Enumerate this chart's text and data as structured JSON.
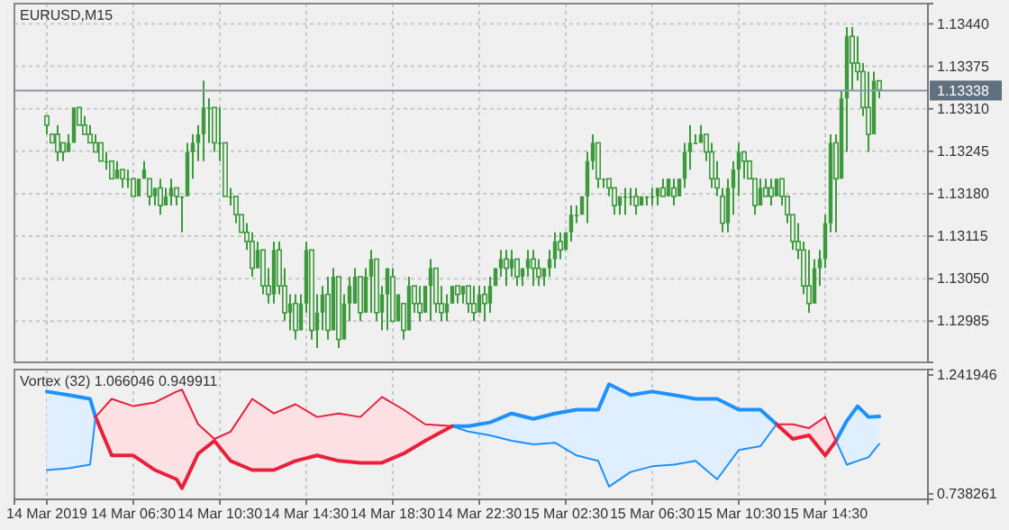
{
  "chart_data": [
    {
      "type": "candlestick",
      "title": "EURUSD,M15",
      "color": "#3c9a3c",
      "grid": true,
      "tick_labels": "y",
      "xlim": [
        "2019-03-14T01:00",
        "2019-03-15T19:15"
      ],
      "xticks": [
        {
          "value": "2019-03-14T02:30",
          "label": null
        },
        {
          "value": "2019-03-14T06:30",
          "label": null
        },
        {
          "value": "2019-03-14T10:30",
          "label": null
        },
        {
          "value": "2019-03-14T14:30",
          "label": null
        },
        {
          "value": "2019-03-14T18:30",
          "label": null
        },
        {
          "value": "2019-03-14T22:30",
          "label": null
        },
        {
          "value": "2019-03-15T02:30",
          "label": null
        },
        {
          "value": "2019-03-15T06:30",
          "label": null
        },
        {
          "value": "2019-03-15T10:30",
          "label": null
        },
        {
          "value": "2019-03-15T14:30",
          "label": null
        }
      ],
      "ylim": [
        1.12922,
        1.13471
      ],
      "yticks": [
        {
          "value": 1.12985,
          "label": "1.12985"
        },
        {
          "value": 1.1305,
          "label": "1.13050"
        },
        {
          "value": 1.13115,
          "label": "1.13115"
        },
        {
          "value": 1.1318,
          "label": "1.13180"
        },
        {
          "value": 1.13245,
          "label": "1.13245"
        },
        {
          "value": 1.1331,
          "label": "1.13310"
        },
        {
          "value": 1.13375,
          "label": "1.13375"
        },
        {
          "value": 1.1344,
          "label": "1.13440"
        }
      ],
      "ref_lines": [
        {
          "axis": "y",
          "value": 1.13338,
          "label": "1.13338",
          "color": "#8a98a8"
        }
      ],
      "x": [
        "2019-03-14T02:30",
        "2019-03-14T02:45",
        "2019-03-14T03:00",
        "2019-03-14T03:15",
        "2019-03-14T03:30",
        "2019-03-14T03:45",
        "2019-03-14T04:00",
        "2019-03-14T04:15",
        "2019-03-14T04:30",
        "2019-03-14T04:45",
        "2019-03-14T05:00",
        "2019-03-14T05:15",
        "2019-03-14T05:30",
        "2019-03-14T05:45",
        "2019-03-14T06:00",
        "2019-03-14T06:15",
        "2019-03-14T06:30",
        "2019-03-14T06:45",
        "2019-03-14T07:00",
        "2019-03-14T07:15",
        "2019-03-14T07:30",
        "2019-03-14T07:45",
        "2019-03-14T08:00",
        "2019-03-14T08:15",
        "2019-03-14T08:30",
        "2019-03-14T08:45",
        "2019-03-14T09:00",
        "2019-03-14T09:15",
        "2019-03-14T09:30",
        "2019-03-14T09:45",
        "2019-03-14T10:00",
        "2019-03-14T10:15",
        "2019-03-14T10:30",
        "2019-03-14T10:45",
        "2019-03-14T11:00",
        "2019-03-14T11:15",
        "2019-03-14T11:30",
        "2019-03-14T11:45",
        "2019-03-14T12:00",
        "2019-03-14T12:15",
        "2019-03-14T12:30",
        "2019-03-14T12:45",
        "2019-03-14T13:00",
        "2019-03-14T13:15",
        "2019-03-14T13:30",
        "2019-03-14T13:45",
        "2019-03-14T14:00",
        "2019-03-14T14:15",
        "2019-03-14T14:30",
        "2019-03-14T14:45",
        "2019-03-14T15:00",
        "2019-03-14T15:15",
        "2019-03-14T15:30",
        "2019-03-14T15:45",
        "2019-03-14T16:00",
        "2019-03-14T16:15",
        "2019-03-14T16:30",
        "2019-03-14T16:45",
        "2019-03-14T17:00",
        "2019-03-14T17:15",
        "2019-03-14T17:30",
        "2019-03-14T17:45",
        "2019-03-14T18:00",
        "2019-03-14T18:15",
        "2019-03-14T18:30",
        "2019-03-14T18:45",
        "2019-03-14T19:00",
        "2019-03-14T19:15",
        "2019-03-14T19:30",
        "2019-03-14T19:45",
        "2019-03-14T20:00",
        "2019-03-14T20:15",
        "2019-03-14T20:30",
        "2019-03-14T20:45",
        "2019-03-14T21:00",
        "2019-03-14T21:15",
        "2019-03-14T21:30",
        "2019-03-14T21:45",
        "2019-03-14T22:00",
        "2019-03-14T22:15",
        "2019-03-14T22:30",
        "2019-03-14T22:45",
        "2019-03-14T23:00",
        "2019-03-14T23:15",
        "2019-03-14T23:30",
        "2019-03-14T23:45",
        "2019-03-15T00:00",
        "2019-03-15T00:15",
        "2019-03-15T00:30",
        "2019-03-15T00:45",
        "2019-03-15T01:00",
        "2019-03-15T01:15",
        "2019-03-15T01:30",
        "2019-03-15T01:45",
        "2019-03-15T02:00",
        "2019-03-15T02:15",
        "2019-03-15T02:30",
        "2019-03-15T02:45",
        "2019-03-15T03:00",
        "2019-03-15T03:15",
        "2019-03-15T03:30",
        "2019-03-15T03:45",
        "2019-03-15T04:00",
        "2019-03-15T04:15",
        "2019-03-15T04:30",
        "2019-03-15T04:45",
        "2019-03-15T05:00",
        "2019-03-15T05:15",
        "2019-03-15T05:30",
        "2019-03-15T05:45",
        "2019-03-15T06:00",
        "2019-03-15T06:15",
        "2019-03-15T06:30",
        "2019-03-15T06:45",
        "2019-03-15T07:00",
        "2019-03-15T07:15",
        "2019-03-15T07:30",
        "2019-03-15T07:45",
        "2019-03-15T08:00",
        "2019-03-15T08:15",
        "2019-03-15T08:30",
        "2019-03-15T08:45",
        "2019-03-15T09:00",
        "2019-03-15T09:15",
        "2019-03-15T09:30",
        "2019-03-15T09:45",
        "2019-03-15T10:00",
        "2019-03-15T10:15",
        "2019-03-15T10:30",
        "2019-03-15T10:45",
        "2019-03-15T11:00",
        "2019-03-15T11:15",
        "2019-03-15T11:30",
        "2019-03-15T11:45",
        "2019-03-15T12:00",
        "2019-03-15T12:15",
        "2019-03-15T12:30",
        "2019-03-15T12:45",
        "2019-03-15T13:00",
        "2019-03-15T13:15",
        "2019-03-15T13:30",
        "2019-03-15T13:45",
        "2019-03-15T14:00",
        "2019-03-15T14:15",
        "2019-03-15T14:30",
        "2019-03-15T14:45",
        "2019-03-15T15:00",
        "2019-03-15T15:15",
        "2019-03-15T15:30",
        "2019-03-15T15:45",
        "2019-03-15T16:00",
        "2019-03-15T16:15",
        "2019-03-15T16:30",
        "2019-03-15T16:45",
        "2019-03-15T17:00"
      ],
      "ohlc": [
        [
          1.13299,
          1.13299,
          1.13271,
          1.13285
        ],
        [
          1.13271,
          1.13271,
          1.13258,
          1.13258
        ],
        [
          1.13271,
          1.13285,
          1.1323,
          1.13244
        ],
        [
          1.13258,
          1.13258,
          1.1323,
          1.13244
        ],
        [
          1.13244,
          1.13271,
          1.13244,
          1.13258
        ],
        [
          1.13258,
          1.13312,
          1.13258,
          1.13312
        ],
        [
          1.13312,
          1.13312,
          1.13285,
          1.13285
        ],
        [
          1.13285,
          1.13299,
          1.13271,
          1.13271
        ],
        [
          1.13271,
          1.13285,
          1.13258,
          1.13258
        ],
        [
          1.13258,
          1.13271,
          1.13244,
          1.13244
        ],
        [
          1.13258,
          1.13258,
          1.1323,
          1.1323
        ],
        [
          1.1323,
          1.13244,
          1.13217,
          1.1323
        ],
        [
          1.1323,
          1.1323,
          1.13203,
          1.13203
        ],
        [
          1.13203,
          1.1323,
          1.13203,
          1.13217
        ],
        [
          1.13217,
          1.13217,
          1.13189,
          1.13203
        ],
        [
          1.13203,
          1.13217,
          1.13189,
          1.13203
        ],
        [
          1.13203,
          1.13203,
          1.13176,
          1.13176
        ],
        [
          1.13176,
          1.13203,
          1.13176,
          1.13203
        ],
        [
          1.13203,
          1.1323,
          1.13203,
          1.13217
        ],
        [
          1.13203,
          1.13203,
          1.13162,
          1.13176
        ],
        [
          1.13176,
          1.13189,
          1.13162,
          1.13189
        ],
        [
          1.13189,
          1.13203,
          1.13148,
          1.13162
        ],
        [
          1.13162,
          1.13189,
          1.13162,
          1.13176
        ],
        [
          1.13176,
          1.13203,
          1.13162,
          1.13189
        ],
        [
          1.13189,
          1.13189,
          1.13162,
          1.13176
        ],
        [
          1.13176,
          1.13176,
          1.13121,
          1.13176
        ],
        [
          1.13176,
          1.13258,
          1.13176,
          1.13244
        ],
        [
          1.13244,
          1.13271,
          1.13203,
          1.13258
        ],
        [
          1.13258,
          1.13285,
          1.1323,
          1.13271
        ],
        [
          1.13271,
          1.13353,
          1.1323,
          1.13312
        ],
        [
          1.13312,
          1.13326,
          1.13258,
          1.13312
        ],
        [
          1.13312,
          1.13312,
          1.13244,
          1.13258
        ],
        [
          1.13258,
          1.13312,
          1.1323,
          1.13258
        ],
        [
          1.13258,
          1.13258,
          1.13176,
          1.13176
        ],
        [
          1.13176,
          1.13189,
          1.13162,
          1.13176
        ],
        [
          1.13176,
          1.13176,
          1.13135,
          1.13148
        ],
        [
          1.13148,
          1.13148,
          1.13121,
          1.13121
        ],
        [
          1.13121,
          1.13135,
          1.13094,
          1.13107
        ],
        [
          1.13107,
          1.13121,
          1.13053,
          1.13066
        ],
        [
          1.13066,
          1.13107,
          1.13066,
          1.13094
        ],
        [
          1.13094,
          1.13094,
          1.13026,
          1.13039
        ],
        [
          1.13039,
          1.13066,
          1.13012,
          1.13026
        ],
        [
          1.13026,
          1.13107,
          1.13012,
          1.13094
        ],
        [
          1.13094,
          1.13107,
          1.13026,
          1.13039
        ],
        [
          1.13039,
          1.13066,
          1.12985,
          1.12998
        ],
        [
          1.12998,
          1.13026,
          1.12971,
          1.13012
        ],
        [
          1.13012,
          1.13026,
          1.12957,
          1.12971
        ],
        [
          1.12971,
          1.13026,
          1.12971,
          1.13012
        ],
        [
          1.13012,
          1.13107,
          1.12998,
          1.13094
        ],
        [
          1.13094,
          1.13094,
          1.12957,
          1.12971
        ],
        [
          1.12971,
          1.13026,
          1.12944,
          1.12998
        ],
        [
          1.12998,
          1.13039,
          1.12971,
          1.13026
        ],
        [
          1.13026,
          1.13053,
          1.12957,
          1.12971
        ],
        [
          1.12971,
          1.13066,
          1.12971,
          1.13053
        ],
        [
          1.13053,
          1.13053,
          1.12944,
          1.12957
        ],
        [
          1.12957,
          1.13026,
          1.12957,
          1.13012
        ],
        [
          1.13012,
          1.13053,
          1.12985,
          1.13039
        ],
        [
          1.13012,
          1.13066,
          1.13012,
          1.13053
        ],
        [
          1.13053,
          1.13053,
          1.12985,
          1.12998
        ],
        [
          1.12998,
          1.13066,
          1.12998,
          1.13053
        ],
        [
          1.13053,
          1.13094,
          1.12998,
          1.1308
        ],
        [
          1.1308,
          1.1308,
          1.12985,
          1.12998
        ],
        [
          1.12998,
          1.13039,
          1.12971,
          1.13026
        ],
        [
          1.13026,
          1.13066,
          1.12971,
          1.13066
        ],
        [
          1.13053,
          1.13066,
          1.12985,
          1.12985
        ],
        [
          1.12985,
          1.13026,
          1.12985,
          1.13026
        ],
        [
          1.13012,
          1.13012,
          1.12957,
          1.12971
        ],
        [
          1.12971,
          1.13053,
          1.12971,
          1.13039
        ],
        [
          1.13039,
          1.13039,
          1.12998,
          1.13012
        ],
        [
          1.13012,
          1.13039,
          1.12985,
          1.12998
        ],
        [
          1.12998,
          1.13039,
          1.12998,
          1.13039
        ],
        [
          1.13039,
          1.1308,
          1.12985,
          1.13066
        ],
        [
          1.13066,
          1.13066,
          1.12998,
          1.13012
        ],
        [
          1.13012,
          1.13039,
          1.12985,
          1.12998
        ],
        [
          1.12998,
          1.13026,
          1.12985,
          1.13012
        ],
        [
          1.13012,
          1.13039,
          1.13012,
          1.13039
        ],
        [
          1.13039,
          1.13039,
          1.13012,
          1.13026
        ],
        [
          1.13026,
          1.13039,
          1.13012,
          1.13039
        ],
        [
          1.13039,
          1.13039,
          1.12998,
          1.13012
        ],
        [
          1.13012,
          1.13039,
          1.12985,
          1.12998
        ],
        [
          1.12998,
          1.13039,
          1.12998,
          1.13026
        ],
        [
          1.13026,
          1.13039,
          1.12985,
          1.13012
        ],
        [
          1.13012,
          1.13053,
          1.12998,
          1.13039
        ],
        [
          1.13039,
          1.13066,
          1.13039,
          1.13066
        ],
        [
          1.13066,
          1.13094,
          1.13053,
          1.1308
        ],
        [
          1.1308,
          1.13094,
          1.13039,
          1.13066
        ],
        [
          1.13066,
          1.13094,
          1.13053,
          1.1308
        ],
        [
          1.1308,
          1.1308,
          1.13039,
          1.13053
        ],
        [
          1.13053,
          1.13066,
          1.13039,
          1.13066
        ],
        [
          1.13066,
          1.13094,
          1.13053,
          1.1308
        ],
        [
          1.1308,
          1.13094,
          1.13039,
          1.13066
        ],
        [
          1.13066,
          1.1308,
          1.13039,
          1.13053
        ],
        [
          1.13053,
          1.13066,
          1.13039,
          1.13066
        ],
        [
          1.13066,
          1.13094,
          1.13053,
          1.1308
        ],
        [
          1.1308,
          1.13121,
          1.13066,
          1.13107
        ],
        [
          1.13107,
          1.13121,
          1.1308,
          1.13094
        ],
        [
          1.13094,
          1.13121,
          1.13094,
          1.13121
        ],
        [
          1.13121,
          1.13162,
          1.13107,
          1.13148
        ],
        [
          1.13148,
          1.13162,
          1.13135,
          1.13148
        ],
        [
          1.13148,
          1.13176,
          1.13148,
          1.13176
        ],
        [
          1.13176,
          1.13244,
          1.13135,
          1.1323
        ],
        [
          1.1323,
          1.13271,
          1.13217,
          1.13258
        ],
        [
          1.13258,
          1.13258,
          1.13189,
          1.13203
        ],
        [
          1.13203,
          1.13203,
          1.13189,
          1.13203
        ],
        [
          1.13203,
          1.13203,
          1.13176,
          1.13189
        ],
        [
          1.13189,
          1.13189,
          1.13148,
          1.13162
        ],
        [
          1.13162,
          1.13176,
          1.13148,
          1.13176
        ],
        [
          1.13176,
          1.13189,
          1.13148,
          1.13176
        ],
        [
          1.13176,
          1.13189,
          1.13162,
          1.13176
        ],
        [
          1.13176,
          1.13189,
          1.13148,
          1.13162
        ],
        [
          1.13162,
          1.13176,
          1.13162,
          1.13176
        ],
        [
          1.13176,
          1.13176,
          1.13162,
          1.13176
        ],
        [
          1.13176,
          1.13189,
          1.13162,
          1.13176
        ],
        [
          1.13176,
          1.13189,
          1.13162,
          1.13189
        ],
        [
          1.13189,
          1.13203,
          1.13176,
          1.13176
        ],
        [
          1.13176,
          1.13203,
          1.13176,
          1.13203
        ],
        [
          1.13189,
          1.13203,
          1.13162,
          1.13176
        ],
        [
          1.13176,
          1.13203,
          1.13176,
          1.13203
        ],
        [
          1.13203,
          1.13258,
          1.13189,
          1.13244
        ],
        [
          1.13244,
          1.13285,
          1.13217,
          1.13258
        ],
        [
          1.13258,
          1.13271,
          1.13258,
          1.13258
        ],
        [
          1.13258,
          1.13285,
          1.13258,
          1.13271
        ],
        [
          1.13271,
          1.13271,
          1.1323,
          1.13244
        ],
        [
          1.13244,
          1.13258,
          1.13189,
          1.13203
        ],
        [
          1.13203,
          1.1323,
          1.13176,
          1.13189
        ],
        [
          1.13176,
          1.13189,
          1.13121,
          1.13135
        ],
        [
          1.13135,
          1.13203,
          1.13121,
          1.13189
        ],
        [
          1.13189,
          1.1323,
          1.13148,
          1.13217
        ],
        [
          1.13217,
          1.13258,
          1.13176,
          1.13244
        ],
        [
          1.13244,
          1.13244,
          1.13203,
          1.1323
        ],
        [
          1.1323,
          1.1323,
          1.13203,
          1.13203
        ],
        [
          1.13203,
          1.13203,
          1.13148,
          1.13162
        ],
        [
          1.13162,
          1.13203,
          1.13162,
          1.13189
        ],
        [
          1.13189,
          1.13203,
          1.13176,
          1.13176
        ],
        [
          1.13189,
          1.13203,
          1.13162,
          1.13176
        ],
        [
          1.13176,
          1.13203,
          1.13176,
          1.13203
        ],
        [
          1.13203,
          1.13203,
          1.13162,
          1.13176
        ],
        [
          1.13176,
          1.13176,
          1.13135,
          1.13148
        ],
        [
          1.13148,
          1.13148,
          1.13094,
          1.13107
        ],
        [
          1.13107,
          1.13135,
          1.1308,
          1.13094
        ],
        [
          1.13094,
          1.13107,
          1.13026,
          1.13039
        ],
        [
          1.13039,
          1.13094,
          1.12998,
          1.13012
        ],
        [
          1.13012,
          1.1308,
          1.13012,
          1.13066
        ],
        [
          1.13066,
          1.13094,
          1.13039,
          1.1308
        ],
        [
          1.1308,
          1.13148,
          1.13066,
          1.13135
        ],
        [
          1.13135,
          1.13271,
          1.13121,
          1.13258
        ],
        [
          1.13258,
          1.13271,
          1.13121,
          1.13203
        ],
        [
          1.13203,
          1.13339,
          1.13203,
          1.13326
        ],
        [
          1.13326,
          1.13435,
          1.13244,
          1.13421
        ],
        [
          1.13421,
          1.13435,
          1.13339,
          1.1338
        ],
        [
          1.1338,
          1.13421,
          1.13353,
          1.13367
        ],
        [
          1.13367,
          1.1338,
          1.13299,
          1.13312
        ],
        [
          1.13312,
          1.13367,
          1.13244,
          1.13271
        ],
        [
          1.13271,
          1.13367,
          1.13271,
          1.13353
        ],
        [
          1.13353,
          1.13353,
          1.13326,
          1.13339
        ]
      ]
    },
    {
      "type": "line",
      "title": "Vortex (32) 1.066046 0.949911",
      "grid": "x",
      "xlim": [
        "2019-03-14T01:00",
        "2019-03-15T19:15"
      ],
      "xticks": [
        {
          "value": "2019-03-14T02:30",
          "label": "14 Mar 2019"
        },
        {
          "value": "2019-03-14T06:30",
          "label": "14 Mar 06:30"
        },
        {
          "value": "2019-03-14T10:30",
          "label": "14 Mar 10:30"
        },
        {
          "value": "2019-03-14T14:30",
          "label": "14 Mar 14:30"
        },
        {
          "value": "2019-03-14T18:30",
          "label": "14 Mar 18:30"
        },
        {
          "value": "2019-03-14T22:30",
          "label": "14 Mar 22:30"
        },
        {
          "value": "2019-03-15T02:30",
          "label": "15 Mar 02:30"
        },
        {
          "value": "2019-03-15T06:30",
          "label": "15 Mar 06:30"
        },
        {
          "value": "2019-03-15T10:30",
          "label": "15 Mar 10:30"
        },
        {
          "value": "2019-03-15T14:30",
          "label": "15 Mar 14:30"
        }
      ],
      "ylim": [
        0.715,
        1.265
      ],
      "yticks": [
        0.738261,
        1.241946
      ],
      "x": [
        "2019-03-14T02:30",
        "2019-03-14T03:30",
        "2019-03-14T04:30",
        "2019-03-14T04:45",
        "2019-03-14T05:30",
        "2019-03-14T06:30",
        "2019-03-14T07:30",
        "2019-03-14T08:30",
        "2019-03-14T08:45",
        "2019-03-14T09:30",
        "2019-03-14T10:15",
        "2019-03-14T11:00",
        "2019-03-14T12:00",
        "2019-03-14T13:00",
        "2019-03-14T14:00",
        "2019-03-14T15:00",
        "2019-03-14T16:00",
        "2019-03-14T17:00",
        "2019-03-14T18:00",
        "2019-03-14T19:00",
        "2019-03-14T20:00",
        "2019-03-14T21:15",
        "2019-03-14T22:00",
        "2019-03-14T23:00",
        "2019-03-15T00:00",
        "2019-03-15T01:00",
        "2019-03-15T02:00",
        "2019-03-15T03:00",
        "2019-03-15T04:00",
        "2019-03-15T04:30",
        "2019-03-15T05:30",
        "2019-03-15T06:30",
        "2019-03-15T07:30",
        "2019-03-15T08:30",
        "2019-03-15T09:30",
        "2019-03-15T10:30",
        "2019-03-15T11:30",
        "2019-03-15T12:15",
        "2019-03-15T13:00",
        "2019-03-15T13:45",
        "2019-03-15T14:30",
        "2019-03-15T15:00",
        "2019-03-15T15:30",
        "2019-03-15T16:00",
        "2019-03-15T16:30",
        "2019-03-15T17:00"
      ],
      "series": [
        {
          "color": "#1e90ff",
          "values": [
            1.172,
            1.157,
            1.141,
            1.064,
            null,
            null,
            null,
            null,
            null,
            null,
            null,
            null,
            null,
            null,
            null,
            null,
            null,
            null,
            null,
            null,
            null,
            1.025,
            1.025,
            1.041,
            1.079,
            1.056,
            1.079,
            1.095,
            1.095,
            1.203,
            1.157,
            1.172,
            1.157,
            1.141,
            1.141,
            1.095,
            1.095,
            1.033,
            null,
            null,
            null,
            0.963,
            1.048,
            1.11,
            1.064,
            1.066
          ],
          "lower": [
            0.839,
            0.847,
            0.862,
            1.064,
            null,
            null,
            null,
            null,
            null,
            null,
            null,
            null,
            null,
            null,
            null,
            null,
            null,
            null,
            null,
            null,
            null,
            1.025,
            1.002,
            0.986,
            0.963,
            0.948,
            0.955,
            0.901,
            0.878,
            0.769,
            0.831,
            0.855,
            0.862,
            0.878,
            0.8,
            0.924,
            0.94,
            1.033,
            null,
            null,
            null,
            0.963,
            0.862,
            0.878,
            0.893,
            0.95
          ],
          "upper": [
            1.172,
            1.157,
            1.141,
            1.064,
            null,
            null,
            null,
            null,
            null,
            null,
            null,
            null,
            null,
            null,
            null,
            null,
            null,
            null,
            null,
            null,
            null,
            1.025,
            1.025,
            1.041,
            1.079,
            1.056,
            1.079,
            1.095,
            1.095,
            1.203,
            1.157,
            1.172,
            1.157,
            1.141,
            1.141,
            1.095,
            1.095,
            1.033,
            null,
            null,
            null,
            0.963,
            1.048,
            1.11,
            1.064,
            1.066
          ]
        },
        {
          "color": "#e8203a",
          "values": [
            null,
            null,
            null,
            1.064,
            0.901,
            0.901,
            0.839,
            0.8,
            0.762,
            0.909,
            0.963,
            0.878,
            0.839,
            0.839,
            0.878,
            0.901,
            0.878,
            0.87,
            0.87,
            0.909,
            0.963,
            1.025,
            null,
            null,
            null,
            null,
            null,
            null,
            null,
            null,
            null,
            null,
            null,
            null,
            null,
            null,
            null,
            1.033,
            0.971,
            0.986,
            0.901,
            0.963,
            null,
            null,
            null,
            null
          ],
          "lower": [
            null,
            null,
            null,
            1.064,
            0.901,
            0.901,
            0.839,
            0.8,
            0.762,
            0.909,
            0.963,
            0.878,
            0.839,
            0.839,
            0.878,
            0.901,
            0.878,
            0.87,
            0.87,
            0.909,
            0.963,
            1.025,
            null,
            null,
            null,
            null,
            null,
            null,
            null,
            null,
            null,
            null,
            null,
            null,
            null,
            null,
            null,
            1.033,
            0.971,
            0.986,
            0.901,
            0.963,
            null,
            null,
            null,
            null
          ],
          "upper": [
            null,
            null,
            null,
            1.064,
            1.141,
            1.11,
            1.126,
            1.172,
            1.18,
            1.033,
            0.971,
            1.002,
            1.141,
            1.079,
            1.118,
            1.064,
            1.079,
            1.064,
            1.149,
            1.095,
            1.033,
            1.025,
            null,
            null,
            null,
            null,
            null,
            null,
            null,
            null,
            null,
            null,
            null,
            null,
            null,
            null,
            null,
            1.033,
            1.033,
            1.017,
            1.064,
            0.963,
            null,
            null,
            null,
            null
          ]
        },
        {
          "color": "#1e90ff",
          "values": [
            0.839,
            0.847,
            0.862,
            1.064,
            null,
            null,
            null,
            null,
            null,
            null,
            null,
            null,
            null,
            null,
            null,
            null,
            null,
            null,
            null,
            null,
            null,
            1.025,
            1.002,
            0.986,
            0.963,
            0.948,
            0.955,
            0.901,
            0.878,
            0.769,
            0.831,
            0.855,
            0.862,
            0.878,
            0.8,
            0.924,
            0.94,
            1.033,
            null,
            null,
            null,
            0.963,
            0.862,
            0.878,
            0.893,
            0.95
          ]
        },
        {
          "color": "#e8203a",
          "values": [
            null,
            null,
            null,
            1.064,
            1.141,
            1.11,
            1.126,
            1.172,
            1.18,
            1.033,
            0.971,
            1.002,
            1.141,
            1.079,
            1.118,
            1.064,
            1.079,
            1.064,
            1.149,
            1.095,
            1.033,
            1.025,
            null,
            null,
            null,
            null,
            null,
            null,
            null,
            null,
            null,
            null,
            null,
            null,
            null,
            null,
            null,
            1.033,
            1.033,
            1.017,
            1.064,
            0.963,
            null,
            null,
            null,
            null
          ]
        }
      ]
    }
  ]
}
